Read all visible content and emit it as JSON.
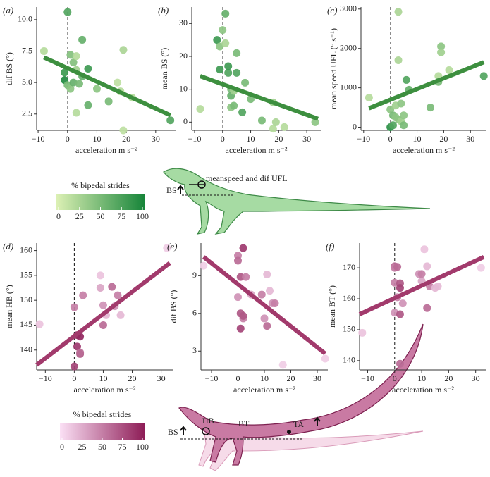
{
  "chart_data": [
    {
      "type": "scatter",
      "panel": "(a)",
      "x_label": "acceleration m s⁻²",
      "y_label": "dif BS (°)",
      "colorbar": 0,
      "vline": 0,
      "xlim": [
        -10.5,
        37
      ],
      "ylim": [
        1.2,
        11
      ],
      "xticks": [
        {
          "value": -10,
          "label": "−10"
        },
        0,
        10,
        20,
        30
      ],
      "yticks": [
        2.5,
        {
          "value": 5,
          "label": "5.0"
        },
        7.5,
        {
          "value": 10,
          "label": "10.0"
        }
      ],
      "x": [
        -8,
        0,
        -1,
        -1,
        0,
        1,
        1,
        2,
        2,
        3,
        3,
        3,
        4,
        5,
        5,
        7,
        7,
        10,
        14,
        17,
        18,
        19,
        19,
        22,
        35
      ],
      "y": [
        7.5,
        10.6,
        5.8,
        5.2,
        4.8,
        4.5,
        7.2,
        6.6,
        5.0,
        7.1,
        6.0,
        2.6,
        4.9,
        8.4,
        5.5,
        6.1,
        3.2,
        4.5,
        3.5,
        5.0,
        4.3,
        7.6,
        1.2,
        3.8,
        2.0
      ],
      "c": [
        20,
        70,
        80,
        95,
        50,
        40,
        45,
        45,
        60,
        20,
        30,
        20,
        50,
        60,
        60,
        80,
        60,
        40,
        50,
        15,
        20,
        25,
        15,
        20,
        70
      ],
      "trend": {
        "x": [
          -8,
          35
        ],
        "y": [
          7.0,
          2.4
        ]
      },
      "trend_color": "#3d8f3f"
    },
    {
      "type": "scatter",
      "panel": "(b)",
      "x_label": "acceleration m s⁻²",
      "y_label": "mean BS (°)",
      "colorbar": 0,
      "vline": 0,
      "xlim": [
        -11,
        35
      ],
      "ylim": [
        -2.5,
        35
      ],
      "xticks": [
        {
          "value": -10,
          "label": "−10"
        },
        0,
        10,
        20,
        30
      ],
      "yticks": [
        0,
        10,
        20,
        30
      ],
      "x": [
        -8,
        -2,
        -1,
        -1,
        0,
        1,
        1,
        2,
        2,
        3,
        3,
        3,
        4,
        4,
        5,
        5,
        7,
        8,
        10,
        14,
        18,
        18,
        19,
        22,
        33
      ],
      "y": [
        4,
        25,
        16,
        23,
        28,
        33,
        24,
        15,
        17,
        10,
        4.5,
        8,
        9.5,
        5,
        21,
        15,
        3,
        12,
        7,
        0.5,
        6,
        -2,
        0,
        -1.5,
        0
      ],
      "c": [
        20,
        80,
        80,
        40,
        40,
        60,
        25,
        70,
        80,
        50,
        40,
        60,
        30,
        50,
        50,
        70,
        70,
        50,
        50,
        50,
        30,
        20,
        25,
        20,
        40
      ],
      "trend": {
        "x": [
          -8,
          34
        ],
        "y": [
          14,
          1
        ]
      },
      "trend_color": "#3d8f3f"
    },
    {
      "type": "scatter",
      "panel": "(c)",
      "x_label": "acceleration m s⁻²",
      "y_label": "mean speed UFL (° s⁻¹)",
      "colorbar": 0,
      "vline": 0,
      "xlim": [
        -11,
        36
      ],
      "ylim": [
        -80,
        3050
      ],
      "xticks": [
        {
          "value": -10,
          "label": "−10"
        },
        0,
        10,
        20,
        30
      ],
      "yticks": [
        0,
        1000,
        2000,
        3000
      ],
      "x": [
        -8,
        0,
        0,
        1,
        1,
        2,
        2,
        3,
        3,
        3,
        4,
        4,
        5,
        5,
        6,
        7,
        15,
        18,
        18,
        19,
        19,
        22,
        35
      ],
      "y": [
        750,
        0,
        450,
        300,
        50,
        250,
        550,
        2930,
        1700,
        200,
        150,
        600,
        50,
        300,
        1200,
        950,
        500,
        1300,
        1150,
        2050,
        1900,
        1450,
        1300
      ],
      "c": [
        20,
        90,
        40,
        50,
        70,
        40,
        30,
        25,
        25,
        40,
        30,
        40,
        50,
        40,
        70,
        60,
        50,
        20,
        50,
        40,
        30,
        20,
        70
      ],
      "trend": {
        "x": [
          -8,
          35
        ],
        "y": [
          480,
          1650
        ]
      },
      "trend_color": "#3d8f3f"
    },
    {
      "type": "scatter",
      "panel": "(d)",
      "x_label": "acceleration m s⁻²",
      "y_label": "mean HB (°)",
      "colorbar": 1,
      "vline": 0,
      "xlim": [
        -13,
        34
      ],
      "ylim": [
        136,
        161.5
      ],
      "xticks": [
        {
          "value": -10,
          "label": "−10"
        },
        0,
        10,
        20,
        30
      ],
      "yticks": [
        140,
        145,
        150,
        155,
        160
      ],
      "x": [
        -12,
        0,
        0,
        1,
        1,
        2,
        2,
        2,
        3,
        9,
        9,
        10,
        10,
        11,
        13,
        14,
        15,
        16,
        32
      ],
      "y": [
        145.2,
        136.7,
        148.6,
        143,
        140.7,
        142.7,
        139.2,
        139.5,
        151,
        152.5,
        155,
        145,
        149,
        147,
        152.7,
        148.8,
        151,
        147,
        160.5
      ],
      "c": [
        15,
        80,
        50,
        90,
        85,
        95,
        70,
        60,
        50,
        30,
        15,
        60,
        40,
        20,
        60,
        40,
        50,
        20,
        10
      ],
      "trend": {
        "x": [
          -13,
          33
        ],
        "y": [
          137,
          157.5
        ]
      },
      "trend_color": "#a23a6c"
    },
    {
      "type": "scatter",
      "panel": "(e)",
      "x_label": "acceleration m s⁻²",
      "y_label": "dif BS (°)",
      "colorbar": 1,
      "vline": 0,
      "xlim": [
        -14,
        34
      ],
      "ylim": [
        1.5,
        11.6
      ],
      "xticks": [
        {
          "value": -10,
          "label": "−10"
        },
        0,
        10,
        20,
        30
      ],
      "yticks": [
        3,
        6,
        9
      ],
      "x": [
        -13,
        0,
        0,
        0,
        1,
        1,
        1,
        2,
        2,
        2,
        3,
        5,
        9,
        10,
        11,
        11,
        12,
        13,
        14,
        17,
        33
      ],
      "y": [
        9.8,
        10.6,
        10.2,
        7.3,
        8.9,
        6,
        4.8,
        11.2,
        5.6,
        5.8,
        8.9,
        7.5,
        7.5,
        5.6,
        5.0,
        9.1,
        7.8,
        6.8,
        6.8,
        1.9,
        2.4
      ],
      "c": [
        10,
        50,
        60,
        40,
        70,
        70,
        80,
        85,
        50,
        70,
        50,
        30,
        50,
        40,
        60,
        20,
        20,
        40,
        50,
        10,
        10
      ],
      "trend": {
        "x": [
          -13,
          33
        ],
        "y": [
          10.5,
          2.8
        ]
      },
      "trend_color": "#a23a6c"
    },
    {
      "type": "scatter",
      "panel": "(f)",
      "x_label": "acceleration m s⁻²",
      "y_label": "mean BT (°)",
      "colorbar": 1,
      "vline": 0,
      "xlim": [
        -13,
        34
      ],
      "ylim": [
        137,
        178
      ],
      "xticks": [
        {
          "value": -10,
          "label": "−10"
        },
        0,
        10,
        20,
        30
      ],
      "yticks": [
        140,
        150,
        160,
        170
      ],
      "x": [
        -12,
        0,
        0,
        0,
        0,
        1,
        1,
        2,
        2,
        2,
        2,
        3,
        9,
        10,
        10,
        11,
        12,
        12,
        13,
        15,
        16,
        32
      ],
      "y": [
        149,
        170.5,
        170,
        165.2,
        155.5,
        170.3,
        160.5,
        165,
        163.5,
        155,
        139,
        158.5,
        168,
        165.7,
        168,
        176,
        170.5,
        157,
        164,
        163.5,
        164,
        170
      ],
      "c": [
        15,
        60,
        50,
        50,
        40,
        60,
        50,
        70,
        80,
        70,
        60,
        40,
        40,
        30,
        50,
        15,
        20,
        60,
        50,
        20,
        20,
        10
      ],
      "trend": {
        "x": [
          -13,
          33
        ],
        "y": [
          155,
          173.5
        ]
      },
      "trend_color": "#a23a6c"
    }
  ],
  "colorbars": [
    {
      "title": "% bipedal strides",
      "colors": [
        "#dcf0b4",
        "#17853a"
      ],
      "lim": [
        0,
        100
      ],
      "ticks": [
        0,
        25,
        50,
        75,
        100
      ]
    },
    {
      "title": "% bipedal strides",
      "colors": [
        "#fbe0f5",
        "#8e1d57"
      ],
      "lim": [
        0,
        100
      ],
      "ticks": [
        0,
        25,
        50,
        75,
        100
      ]
    }
  ],
  "annotations": {
    "top_lizard": [
      "meanspeed and dif UFL",
      "BS"
    ],
    "bottom_lizard": [
      "HB",
      "BT",
      "TA",
      "BS"
    ]
  }
}
